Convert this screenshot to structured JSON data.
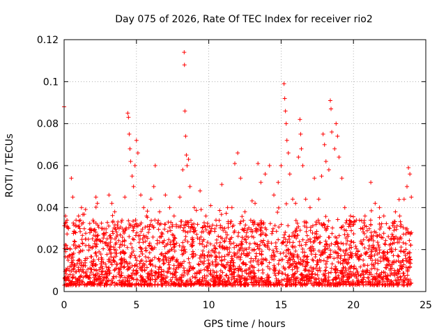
{
  "chart_data": {
    "type": "scatter",
    "title": "Day 075 of 2026, Rate Of TEC Index for receiver rio2",
    "xlabel": "GPS time / hours",
    "ylabel": "ROTI / TECUs",
    "xlim": [
      0,
      25
    ],
    "ylim": [
      0,
      0.12
    ],
    "xticks": [
      "0",
      "5",
      "10",
      "15",
      "20",
      "25"
    ],
    "yticks": [
      "0",
      "0.02",
      "0.04",
      "0.06",
      "0.08",
      "0.1",
      "0.12"
    ],
    "grid": true,
    "marker": "+",
    "color": "#ff0000",
    "series": [
      {
        "name": "",
        "points": [
          [
            0.0,
            0.088
          ],
          [
            0.1,
            0.036
          ],
          [
            0.2,
            0.034
          ],
          [
            0.3,
            0.03
          ],
          [
            0.5,
            0.054
          ],
          [
            0.6,
            0.045
          ],
          [
            0.8,
            0.028
          ],
          [
            1.0,
            0.036
          ],
          [
            1.2,
            0.04
          ],
          [
            1.5,
            0.025
          ],
          [
            1.7,
            0.022
          ],
          [
            2.0,
            0.034
          ],
          [
            2.2,
            0.045
          ],
          [
            2.3,
            0.042
          ],
          [
            2.6,
            0.03
          ],
          [
            2.9,
            0.028
          ],
          [
            3.1,
            0.046
          ],
          [
            3.3,
            0.042
          ],
          [
            3.5,
            0.038
          ],
          [
            3.8,
            0.03
          ],
          [
            4.0,
            0.034
          ],
          [
            4.2,
            0.045
          ],
          [
            4.4,
            0.085
          ],
          [
            4.45,
            0.083
          ],
          [
            4.5,
            0.075
          ],
          [
            4.55,
            0.068
          ],
          [
            4.6,
            0.062
          ],
          [
            4.7,
            0.055
          ],
          [
            4.8,
            0.05
          ],
          [
            4.9,
            0.06
          ],
          [
            5.0,
            0.072
          ],
          [
            5.1,
            0.066
          ],
          [
            5.3,
            0.046
          ],
          [
            5.5,
            0.04
          ],
          [
            5.7,
            0.036
          ],
          [
            6.0,
            0.044
          ],
          [
            6.2,
            0.05
          ],
          [
            6.3,
            0.06
          ],
          [
            6.6,
            0.038
          ],
          [
            7.0,
            0.046
          ],
          [
            7.3,
            0.04
          ],
          [
            7.6,
            0.036
          ],
          [
            8.0,
            0.045
          ],
          [
            8.2,
            0.058
          ],
          [
            8.3,
            0.114
          ],
          [
            8.32,
            0.108
          ],
          [
            8.35,
            0.086
          ],
          [
            8.4,
            0.074
          ],
          [
            8.45,
            0.065
          ],
          [
            8.5,
            0.06
          ],
          [
            8.6,
            0.063
          ],
          [
            8.7,
            0.05
          ],
          [
            9.0,
            0.04
          ],
          [
            9.4,
            0.048
          ],
          [
            9.8,
            0.036
          ],
          [
            10.2,
            0.03
          ],
          [
            10.5,
            0.034
          ],
          [
            10.9,
            0.051
          ],
          [
            11.3,
            0.04
          ],
          [
            11.6,
            0.04
          ],
          [
            11.8,
            0.061
          ],
          [
            12.0,
            0.066
          ],
          [
            12.2,
            0.054
          ],
          [
            12.5,
            0.038
          ],
          [
            12.9,
            0.034
          ],
          [
            13.2,
            0.042
          ],
          [
            13.4,
            0.061
          ],
          [
            13.6,
            0.052
          ],
          [
            13.9,
            0.056
          ],
          [
            14.2,
            0.06
          ],
          [
            14.5,
            0.046
          ],
          [
            14.8,
            0.052
          ],
          [
            15.0,
            0.06
          ],
          [
            15.2,
            0.099
          ],
          [
            15.25,
            0.092
          ],
          [
            15.3,
            0.086
          ],
          [
            15.35,
            0.08
          ],
          [
            15.4,
            0.072
          ],
          [
            15.5,
            0.066
          ],
          [
            15.6,
            0.056
          ],
          [
            15.8,
            0.044
          ],
          [
            16.0,
            0.042
          ],
          [
            16.2,
            0.064
          ],
          [
            16.3,
            0.082
          ],
          [
            16.35,
            0.075
          ],
          [
            16.4,
            0.068
          ],
          [
            16.5,
            0.06
          ],
          [
            16.7,
            0.044
          ],
          [
            17.0,
            0.04
          ],
          [
            17.3,
            0.054
          ],
          [
            17.6,
            0.044
          ],
          [
            17.8,
            0.055
          ],
          [
            17.9,
            0.075
          ],
          [
            18.0,
            0.07
          ],
          [
            18.1,
            0.062
          ],
          [
            18.3,
            0.058
          ],
          [
            18.4,
            0.091
          ],
          [
            18.45,
            0.087
          ],
          [
            18.5,
            0.076
          ],
          [
            18.7,
            0.068
          ],
          [
            18.8,
            0.08
          ],
          [
            18.9,
            0.074
          ],
          [
            19.0,
            0.064
          ],
          [
            19.2,
            0.054
          ],
          [
            19.4,
            0.04
          ],
          [
            19.8,
            0.036
          ],
          [
            20.2,
            0.034
          ],
          [
            20.5,
            0.03
          ],
          [
            20.8,
            0.036
          ],
          [
            21.2,
            0.052
          ],
          [
            21.5,
            0.042
          ],
          [
            21.8,
            0.04
          ],
          [
            22.1,
            0.036
          ],
          [
            22.5,
            0.03
          ],
          [
            22.9,
            0.038
          ],
          [
            23.2,
            0.036
          ],
          [
            23.5,
            0.044
          ],
          [
            23.7,
            0.05
          ],
          [
            23.8,
            0.059
          ],
          [
            23.9,
            0.056
          ],
          [
            24.0,
            0.045
          ]
        ],
        "dense_band": {
          "x_range": [
            0,
            24
          ],
          "typical_y_range": [
            0.003,
            0.03
          ],
          "description_of_density": "thousands of samples, median about 0.01"
        }
      }
    ]
  }
}
